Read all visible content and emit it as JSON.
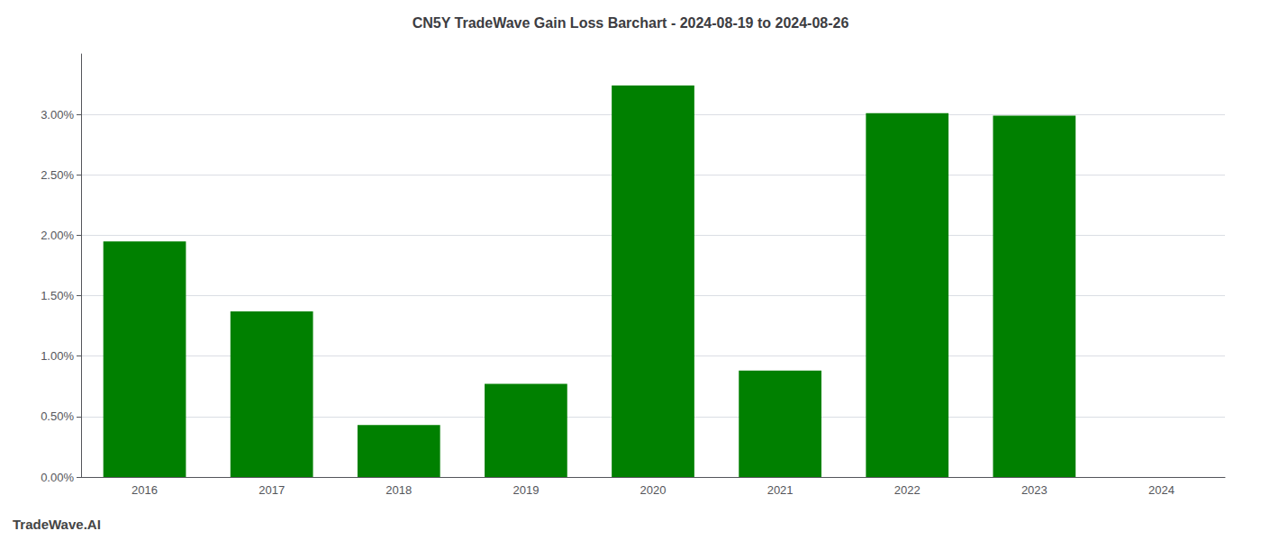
{
  "chart_data": {
    "type": "bar",
    "title": "CN5Y TradeWave Gain Loss Barchart - 2024-08-19 to 2024-08-26",
    "annotations": [
      "TradeWave.AI"
    ],
    "categories": [
      "2016",
      "2017",
      "2018",
      "2019",
      "2020",
      "2021",
      "2022",
      "2023",
      "2024"
    ],
    "values": [
      1.95,
      1.37,
      0.43,
      0.77,
      3.24,
      0.88,
      3.01,
      2.99,
      0.0
    ],
    "color": "#008000",
    "ylim": [
      0,
      3.5
    ],
    "yticks": [
      {
        "value": 0.0,
        "label": "0.00%"
      },
      {
        "value": 0.5,
        "label": "0.50%"
      },
      {
        "value": 1.0,
        "label": "1.00%"
      },
      {
        "value": 1.5,
        "label": "1.50%"
      },
      {
        "value": 2.0,
        "label": "2.00%"
      },
      {
        "value": 2.5,
        "label": "2.50%"
      },
      {
        "value": 3.0,
        "label": "3.00%"
      }
    ],
    "grid": true
  }
}
